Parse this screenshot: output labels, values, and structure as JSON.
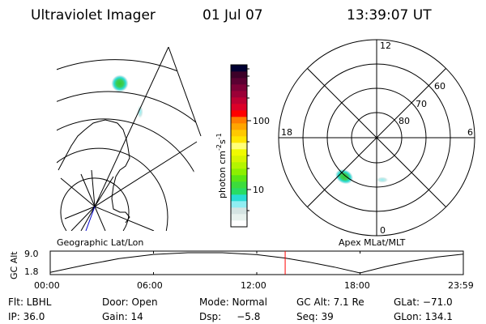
{
  "header": {
    "instrument": "Ultraviolet Imager",
    "date": "01 Jul 07",
    "time": "13:39:07 UT"
  },
  "colorbar": {
    "label": "photon cm",
    "exp1": "-2",
    "unit2": "s",
    "exp2": "-1",
    "ticks": [
      "100",
      "10"
    ],
    "scale": "log",
    "colors": [
      "#ffffff",
      "#e8f2ee",
      "#d4e4e2",
      "#90eef2",
      "#28dcd4",
      "#28dc64",
      "#3cdc3c",
      "#5ae614",
      "#8cf000",
      "#b4f500",
      "#d7f500",
      "#f0fa00",
      "#ffff78",
      "#ffe600",
      "#ffc800",
      "#ffa500",
      "#ff7d00",
      "#ff0000",
      "#dc0028",
      "#be0032",
      "#9b0037",
      "#7d0037",
      "#5a0032",
      "#3c0028",
      "#000032"
    ]
  },
  "left_panel": {
    "label": "Geographic Lat/Lon"
  },
  "right_panel": {
    "label": "Apex MLat/MLT",
    "mlt_labels": [
      "12",
      "18",
      "6",
      "0"
    ],
    "lat_labels": [
      "60",
      "70",
      "80"
    ]
  },
  "orbit_plot": {
    "ylabel": "GC Alt",
    "yticks": [
      "9.0",
      "1.8"
    ],
    "xticks": [
      "00:00",
      "06:00",
      "12:00",
      "18:00",
      "23:59"
    ],
    "current_time_hours": 13.65,
    "marker_color": "#ff0000",
    "chart_data": {
      "type": "line",
      "xlabel": "",
      "ylabel": "GC Alt",
      "xlim": [
        0,
        24
      ],
      "ylim": [
        1.8,
        9.0
      ],
      "x": [
        0,
        2,
        4,
        6,
        8,
        10,
        12,
        13.65,
        15,
        16.5,
        18,
        19.5,
        21,
        22.5,
        24
      ],
      "y": [
        2.0,
        4.6,
        6.9,
        8.4,
        9.0,
        9.0,
        8.3,
        7.1,
        5.7,
        3.9,
        1.8,
        4.1,
        6.0,
        7.5,
        8.5
      ]
    }
  },
  "info": {
    "filter": "Flt: LBHL",
    "door": "Door: Open",
    "mode": "Mode: Normal",
    "gc_alt": "GC Alt: 7.1 Re",
    "glat": "GLat: −71.0",
    "ip": "IP: 36.0",
    "gain": "Gain: 14",
    "dsp": "Dsp:     −5.8",
    "seq": "Seq: 39",
    "glon": "GLon: 134.1"
  }
}
